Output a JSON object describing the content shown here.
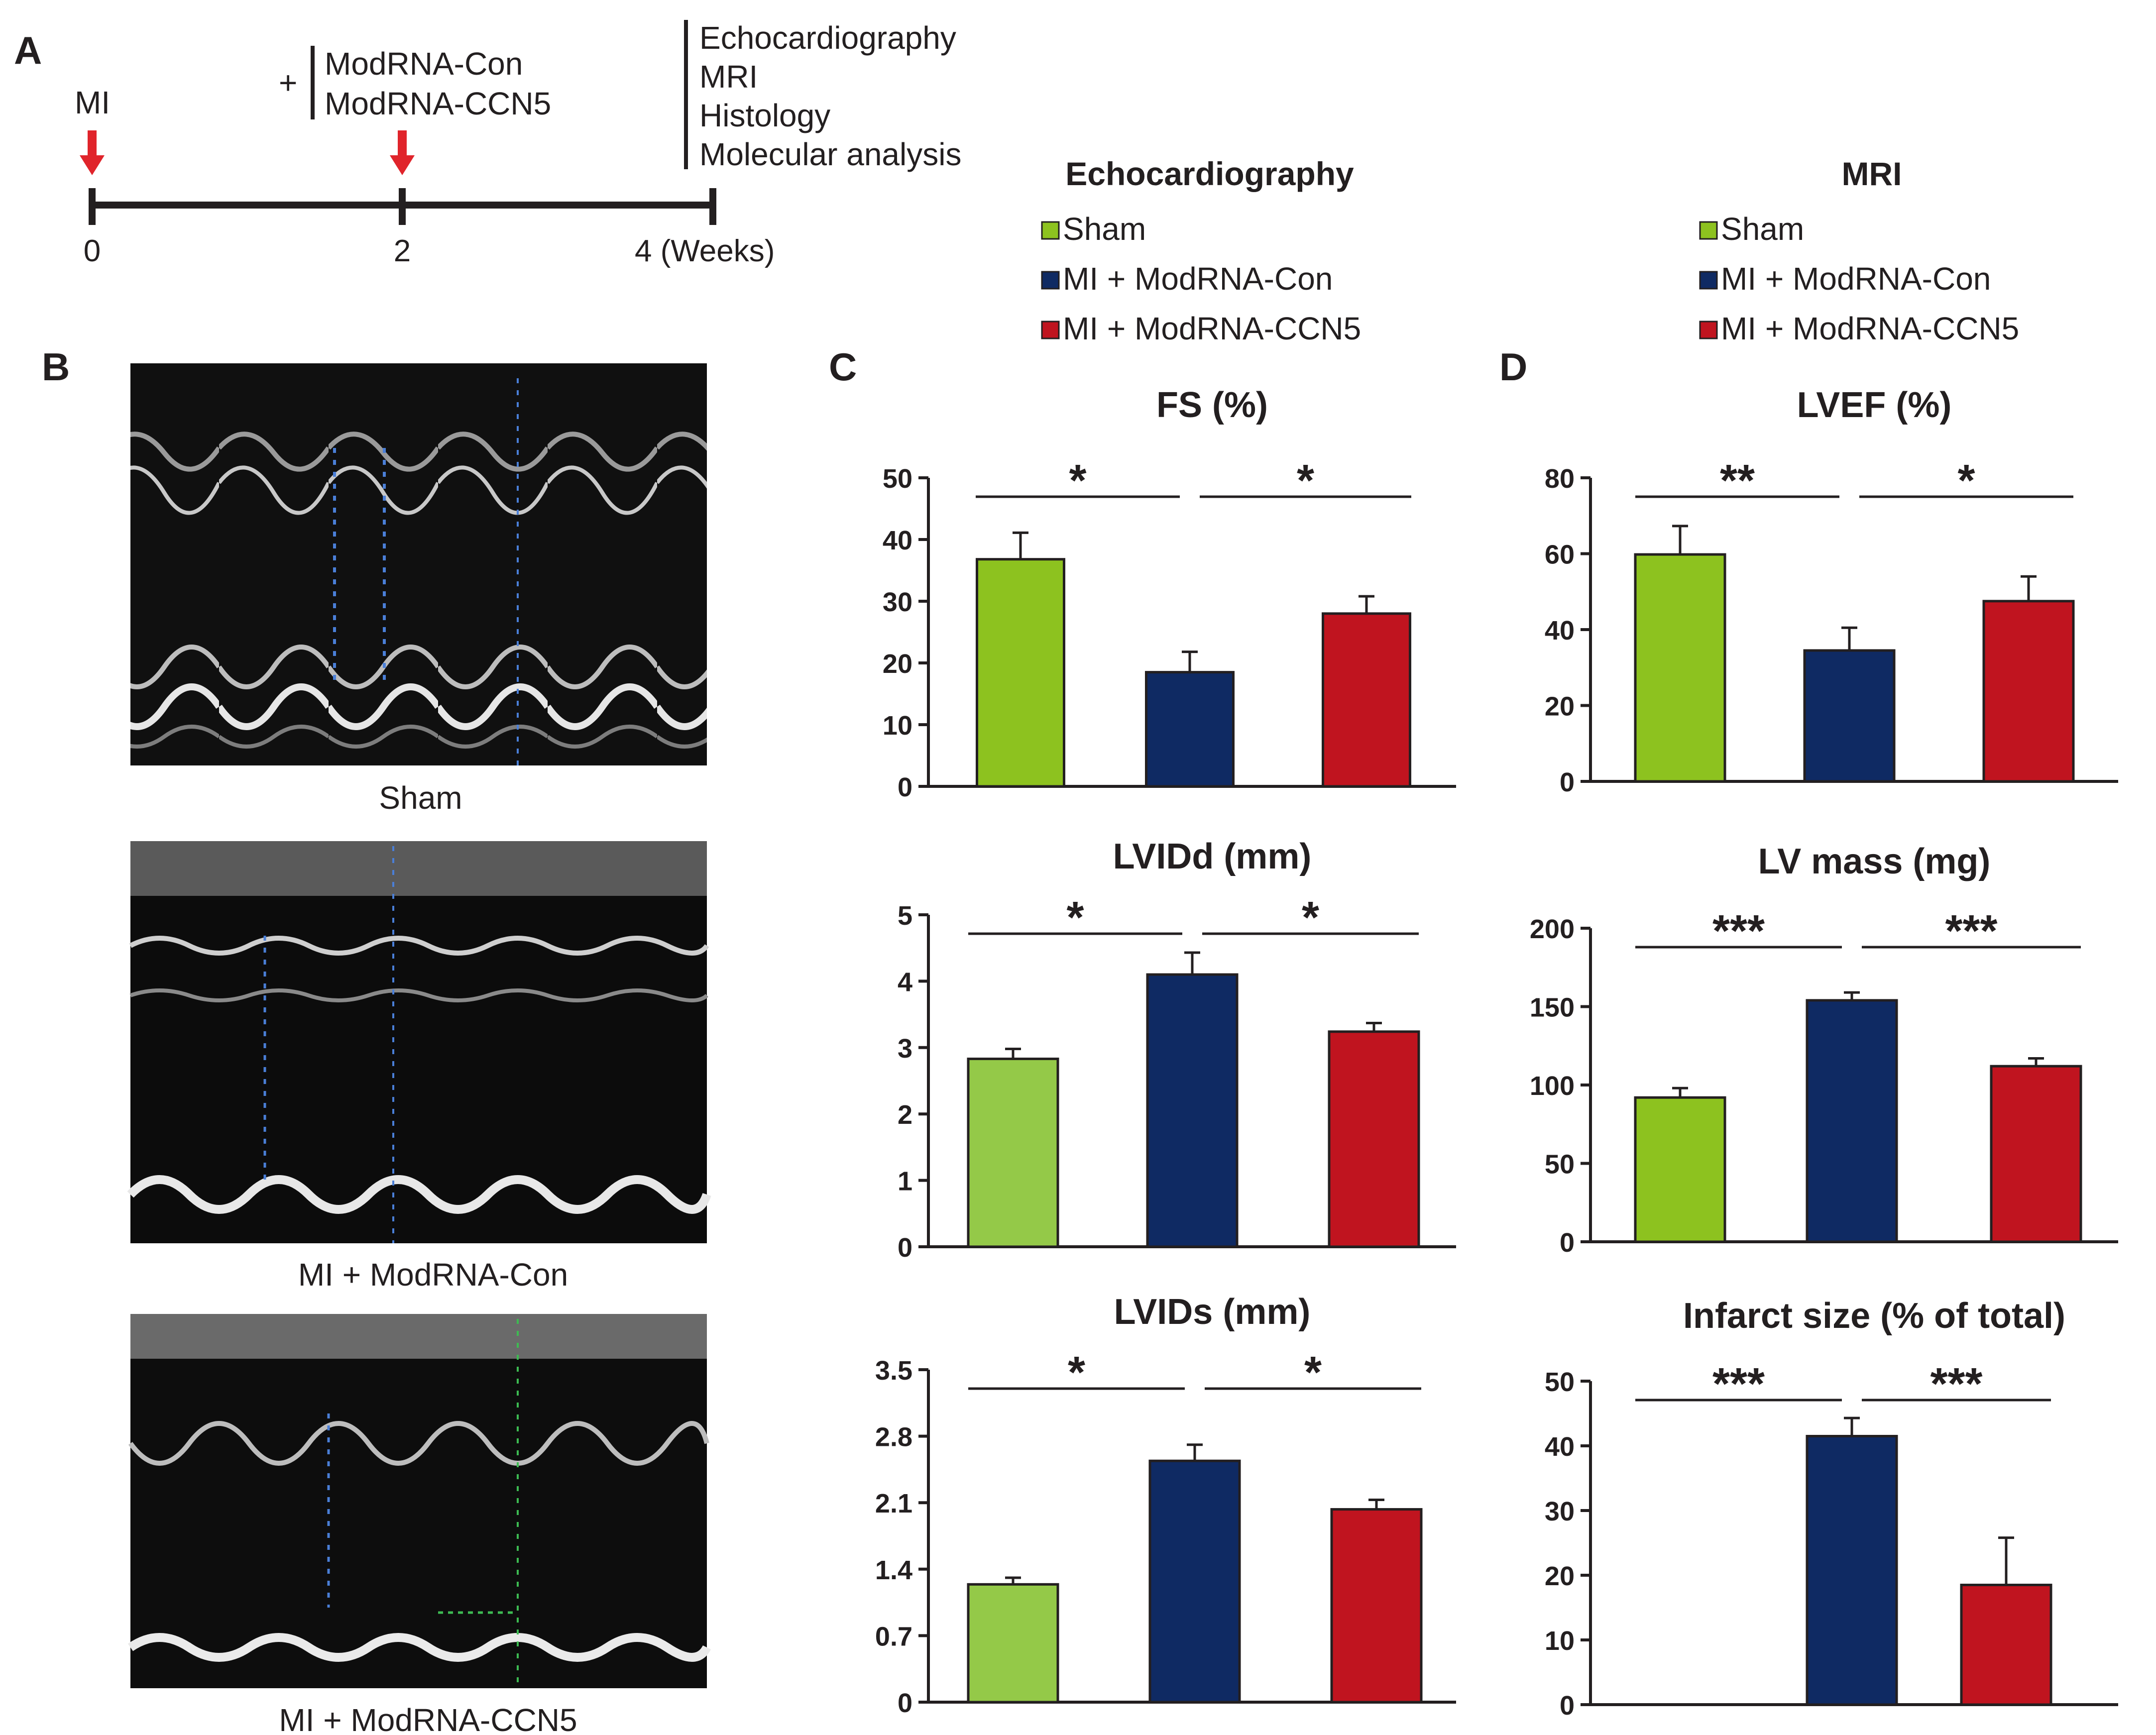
{
  "panel_labels": {
    "a": "A",
    "b": "B",
    "c": "C",
    "d": "D"
  },
  "timeline": {
    "mi_label": "MI",
    "plus": "+",
    "treatments": [
      "ModRNA-Con",
      "ModRNA-CCN5"
    ],
    "ticks": [
      "0",
      "2",
      "4 (Weeks)"
    ],
    "analyses": [
      "Echocardiography",
      "MRI",
      "Histology",
      "Molecular analysis"
    ],
    "arrow_color": "#e0242b"
  },
  "legends": {
    "echo": {
      "title": "Echocardiography",
      "items": [
        {
          "label": "Sham",
          "color": "#8dc21f"
        },
        {
          "label": "MI + ModRNA-Con",
          "color": "#0f2a63"
        },
        {
          "label": "MI + ModRNA-CCN5",
          "color": "#c0141f"
        }
      ]
    },
    "mri": {
      "title": "MRI",
      "items": [
        {
          "label": "Sham",
          "color": "#8dc21f"
        },
        {
          "label": "MI + ModRNA-Con",
          "color": "#0f2a63"
        },
        {
          "label": "MI + ModRNA-CCN5",
          "color": "#c0141f"
        }
      ]
    }
  },
  "echo_images": {
    "captions": [
      "Sham",
      "MI + ModRNA-Con",
      "MI + ModRNA-CCN5"
    ]
  },
  "chart_data": [
    {
      "id": "fs",
      "type": "bar",
      "title": "FS (%)",
      "categories": [
        "Sham",
        "MI + ModRNA-Con",
        "MI + ModRNA-CCN5"
      ],
      "values": [
        36.8,
        18.5,
        28.0
      ],
      "errors": [
        4.3,
        3.3,
        2.8
      ],
      "colors": [
        "#8dc21f",
        "#0f2a63",
        "#c0141f"
      ],
      "ylim": [
        0,
        50
      ],
      "yticks": [
        "0",
        "10",
        "20",
        "30",
        "40",
        "50"
      ],
      "significance": [
        {
          "from": 0,
          "to": 1,
          "label": "*"
        },
        {
          "from": 1,
          "to": 2,
          "label": "*"
        }
      ]
    },
    {
      "id": "lvidd",
      "type": "bar",
      "title": "LVIDd (mm)",
      "categories": [
        "Sham",
        "MI + ModRNA-Con",
        "MI + ModRNA-CCN5"
      ],
      "values": [
        2.83,
        4.1,
        3.24
      ],
      "errors": [
        0.15,
        0.33,
        0.13
      ],
      "colors": [
        "#94c948",
        "#0f2a63",
        "#c0141f"
      ],
      "ylim": [
        0,
        5
      ],
      "yticks": [
        "0",
        "1",
        "2",
        "3",
        "4",
        "5"
      ],
      "significance": [
        {
          "from": 0,
          "to": 1,
          "label": "*"
        },
        {
          "from": 1,
          "to": 2,
          "label": "*"
        }
      ]
    },
    {
      "id": "lvids",
      "type": "bar",
      "title": "LVIDs (mm)",
      "categories": [
        "Sham",
        "MI + ModRNA-Con",
        "MI + ModRNA-CCN5"
      ],
      "values": [
        1.24,
        2.54,
        2.03
      ],
      "errors": [
        0.07,
        0.17,
        0.1
      ],
      "colors": [
        "#94c948",
        "#0f2a63",
        "#c0141f"
      ],
      "ylim": [
        0,
        3.5
      ],
      "yticks": [
        "0",
        "0.7",
        "1.4",
        "2.1",
        "2.8",
        "3.5"
      ],
      "significance": [
        {
          "from": 0,
          "to": 1,
          "label": "*"
        },
        {
          "from": 1,
          "to": 2,
          "label": "*"
        }
      ]
    },
    {
      "id": "lvef",
      "type": "bar",
      "title": "LVEF (%)",
      "categories": [
        "Sham",
        "MI + ModRNA-Con",
        "MI + ModRNA-CCN5"
      ],
      "values": [
        59.8,
        34.5,
        47.5
      ],
      "errors": [
        7.5,
        6.0,
        6.5
      ],
      "colors": [
        "#8dc21f",
        "#0f2a63",
        "#c0141f"
      ],
      "ylim": [
        0,
        80
      ],
      "yticks": [
        "0",
        "20",
        "40",
        "60",
        "80"
      ],
      "significance": [
        {
          "from": 0,
          "to": 1,
          "label": "**"
        },
        {
          "from": 1,
          "to": 2,
          "label": "*"
        }
      ]
    },
    {
      "id": "lvmass",
      "type": "bar",
      "title": "LV mass (mg)",
      "categories": [
        "Sham",
        "MI + ModRNA-Con",
        "MI + ModRNA-CCN5"
      ],
      "values": [
        92,
        154,
        112
      ],
      "errors": [
        6,
        5,
        5
      ],
      "colors": [
        "#8dc21f",
        "#0f2a63",
        "#c0141f"
      ],
      "ylim": [
        0,
        200
      ],
      "yticks": [
        "0",
        "50",
        "100",
        "150",
        "200"
      ],
      "significance": [
        {
          "from": 0,
          "to": 1,
          "label": "***"
        },
        {
          "from": 1,
          "to": 2,
          "label": "***"
        }
      ]
    },
    {
      "id": "infarct",
      "type": "bar",
      "title": "Infarct size (% of total)",
      "categories": [
        "Sham",
        "MI + ModRNA-Con",
        "MI + ModRNA-CCN5"
      ],
      "values": [
        0,
        41.5,
        18.5
      ],
      "errors": [
        0,
        2.8,
        7.3
      ],
      "colors": [
        "#8dc21f",
        "#0f2a63",
        "#c0141f"
      ],
      "ylim": [
        0,
        50
      ],
      "yticks": [
        "0",
        "10",
        "20",
        "30",
        "40",
        "50"
      ],
      "significance": [
        {
          "from": 0,
          "to": 1,
          "label": "***"
        },
        {
          "from": 1,
          "to": 2,
          "label": "***"
        }
      ]
    }
  ]
}
